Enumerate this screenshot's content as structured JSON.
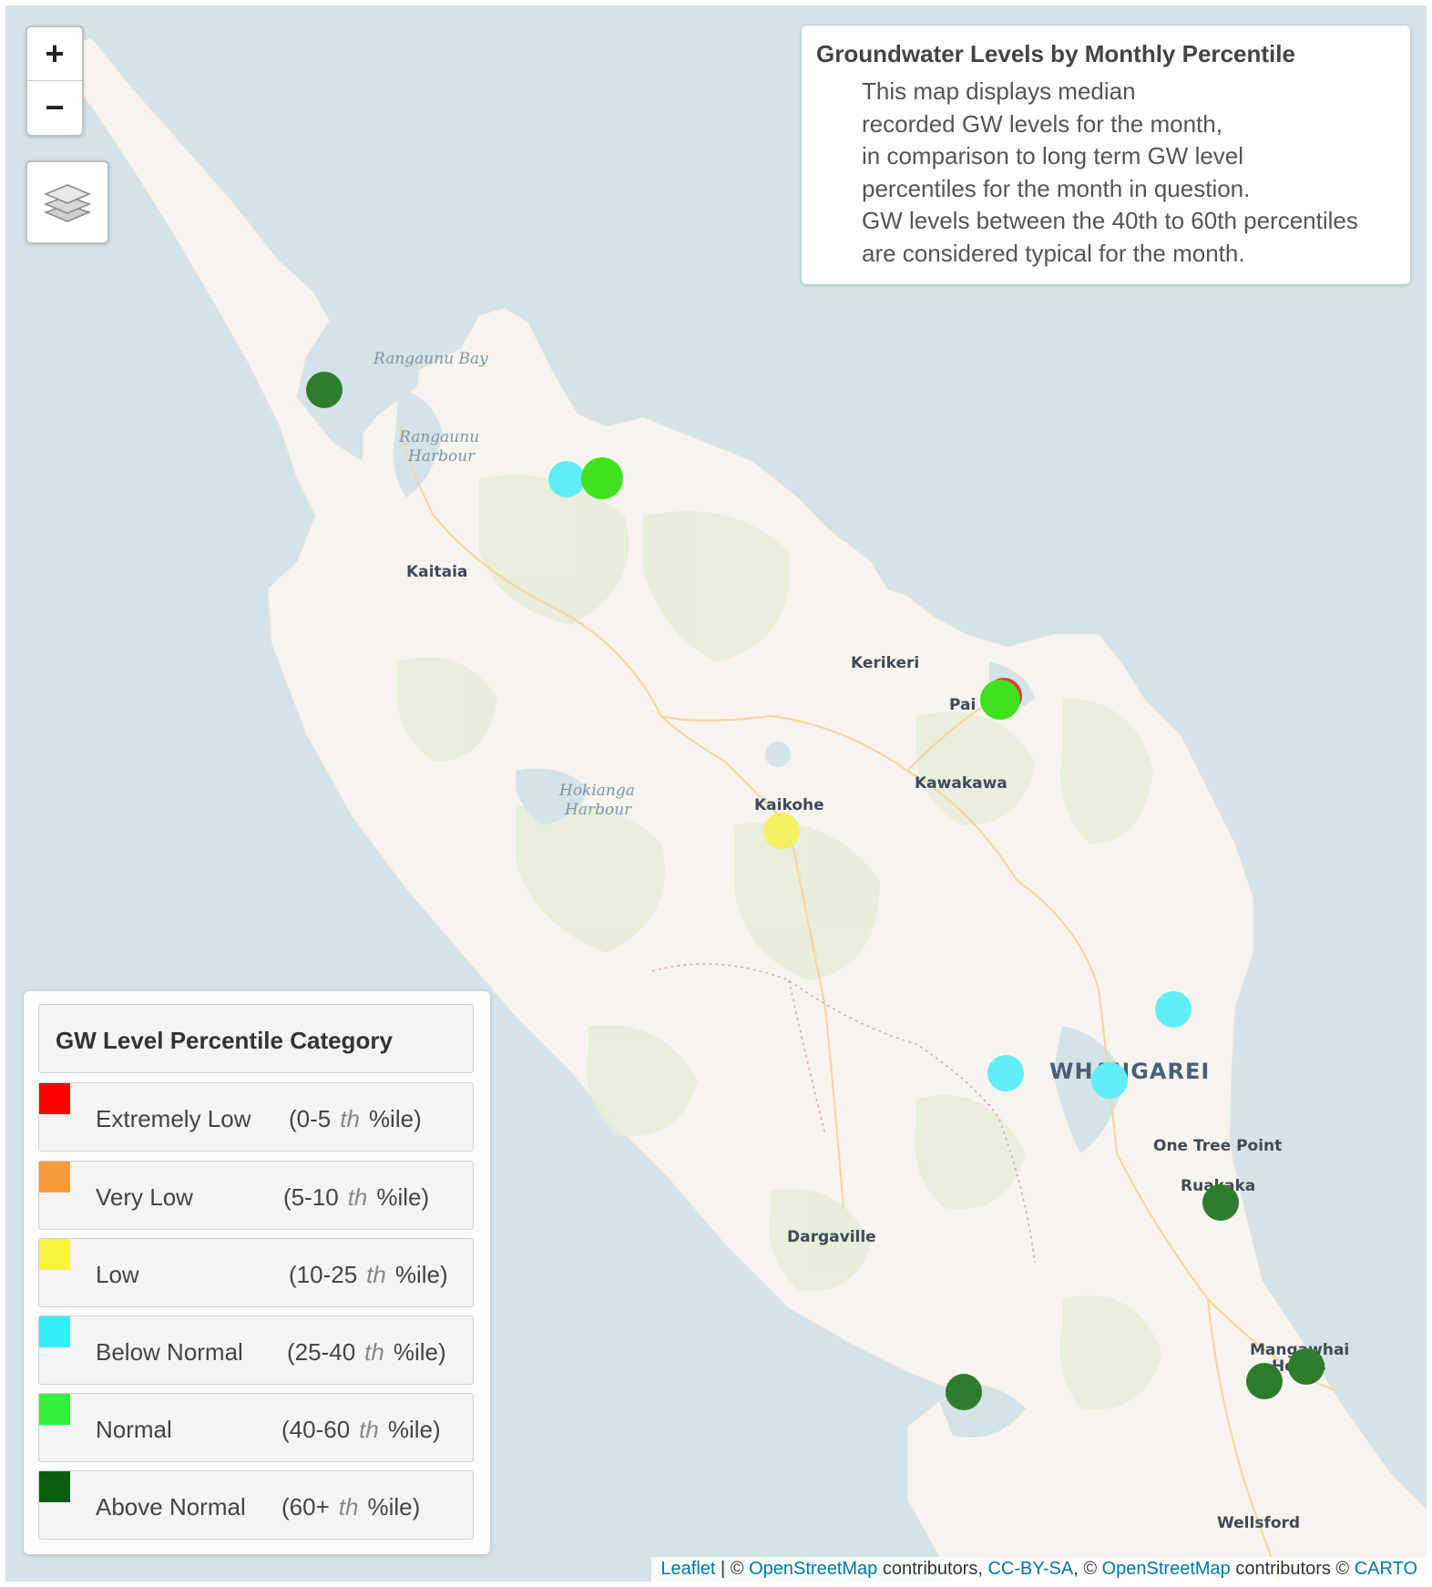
{
  "controls": {
    "zoom_in": "+",
    "zoom_out": "−"
  },
  "info_panel": {
    "title": "Groundwater Levels by Monthly Percentile",
    "lines": [
      "This map displays median",
      "recorded GW levels for the month,",
      "in comparison to long term GW level",
      "percentiles for the month in question.",
      "GW levels between the 40th to 60th percentiles",
      "are considered typical for the month."
    ]
  },
  "legend": {
    "title": "GW Level Percentile Category",
    "items": [
      {
        "label": "Extremely Low",
        "range_a": "(0-5",
        "th": "th",
        "range_b": "%ile)",
        "color": "#ff0000"
      },
      {
        "label": "Very Low",
        "range_a": "(5-10",
        "th": "th",
        "range_b": "%ile)",
        "color": "#f79a3b"
      },
      {
        "label": "Low",
        "range_a": "(10-25",
        "th": "th",
        "range_b": "%ile)",
        "color": "#f6f440"
      },
      {
        "label": "Below Normal",
        "range_a": "(25-40",
        "th": "th",
        "range_b": "%ile)",
        "color": "#33f0f7"
      },
      {
        "label": "Normal",
        "range_a": "(40-60",
        "th": "th",
        "range_b": "%ile)",
        "color": "#34f03c"
      },
      {
        "label": "Above Normal",
        "range_a": "(60+",
        "th": "th",
        "range_b": "%ile)",
        "color": "#0b5e10"
      }
    ]
  },
  "places": [
    "Kaitaia",
    "Kerikeri",
    "Pai",
    "Kawakawa",
    "Kaikohe",
    "One Tree Point",
    "Ruakaka",
    "Dargaville",
    "Mangawhai",
    "Heads",
    "Wellsford"
  ],
  "water_labels": [
    "Rangaunu Bay",
    "Rangaunu",
    "Harbour",
    "Hokianga",
    "Harbour"
  ],
  "city_label": "WHANGAREI",
  "markers": [
    {
      "category": "Above Normal",
      "color": "#2e7d2e"
    },
    {
      "category": "Below Normal",
      "color": "#5feef5"
    },
    {
      "category": "Normal",
      "color": "#41e01e"
    },
    {
      "category": "Extremely Low",
      "color": "#e23a30"
    },
    {
      "category": "Normal",
      "color": "#41e01e"
    },
    {
      "category": "Low",
      "color": "#f4f063"
    },
    {
      "category": "Below Normal",
      "color": "#5feef5"
    },
    {
      "category": "Below Normal",
      "color": "#5feef5"
    },
    {
      "category": "Below Normal",
      "color": "#5feef5"
    },
    {
      "category": "Above Normal",
      "color": "#2e7d2e"
    },
    {
      "category": "Above Normal",
      "color": "#2e7d2e"
    },
    {
      "category": "Above Normal",
      "color": "#2e7d2e"
    },
    {
      "category": "Above Normal",
      "color": "#2e7d2e"
    }
  ],
  "attribution": {
    "leaflet": "Leaflet",
    "sep1": " | © ",
    "osm1": "OpenStreetMap",
    "txt1": " contributors, ",
    "ccbysa": "CC-BY-SA",
    "sep2": ", © ",
    "osm2": "OpenStreetMap",
    "txt2": " contributors © ",
    "carto": "CARTO"
  }
}
